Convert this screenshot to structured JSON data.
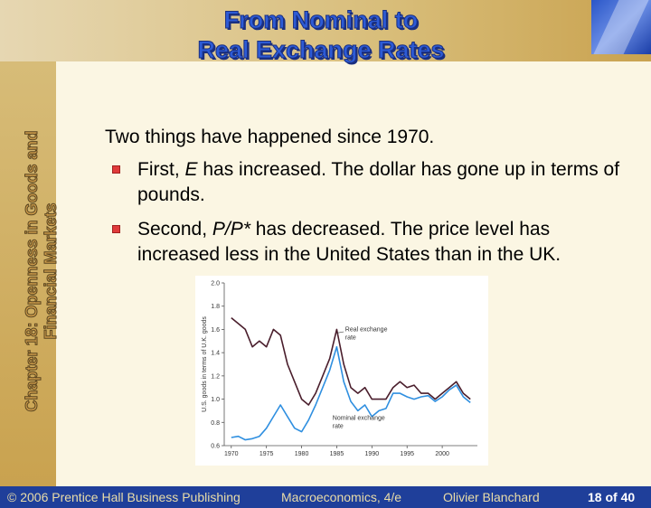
{
  "slide": {
    "title_line1": "From Nominal to",
    "title_line2": "Real Exchange Rates",
    "side_title_line1": "Chapter 18: Openness in Goods and",
    "side_title_line2": "Financial Markets",
    "lead": "Two things have happened since 1970.",
    "bullets": [
      {
        "pre": "First, ",
        "em": "E",
        "post": " has increased. The dollar has gone up in terms of pounds."
      },
      {
        "pre": "Second, ",
        "em": "P/P*",
        "post": " has decreased. The price level has increased less in the United States than in the UK."
      }
    ]
  },
  "footer": {
    "copyright": "© 2006 Prentice Hall Business Publishing",
    "book": "Macroeconomics, 4/e",
    "author": "Olivier Blanchard",
    "page": "18 of 40"
  },
  "colors": {
    "accent_blue": "#1f3f9a",
    "real_line": "#4a1e2c",
    "nominal_line": "#2f8fe0",
    "bullet_red": "#e03a3a"
  },
  "chart_data": {
    "type": "line",
    "title": "",
    "xlabel": "",
    "ylabel": "U.S. goods in terms of U.K. goods",
    "xlim": [
      1969,
      2005
    ],
    "ylim": [
      0.6,
      2.0
    ],
    "x_ticks": [
      1970,
      1975,
      1980,
      1985,
      1990,
      1995,
      2000
    ],
    "y_ticks": [
      "0.6",
      "0.8",
      "1.0",
      "1.2",
      "1.4",
      "1.6",
      "1.8",
      "2.0"
    ],
    "grid": false,
    "series": [
      {
        "name": "Real exchange rate",
        "label_line1": "Real exchange",
        "label_line2": "rate",
        "x": [
          1970,
          1971,
          1972,
          1973,
          1974,
          1975,
          1976,
          1977,
          1978,
          1979,
          1980,
          1981,
          1982,
          1983,
          1984,
          1985,
          1986,
          1987,
          1988,
          1989,
          1990,
          1991,
          1992,
          1993,
          1994,
          1995,
          1996,
          1997,
          1998,
          1999,
          2000,
          2001,
          2002,
          2003,
          2004
        ],
        "values": [
          1.7,
          1.65,
          1.6,
          1.45,
          1.5,
          1.45,
          1.6,
          1.55,
          1.3,
          1.15,
          1.0,
          0.95,
          1.05,
          1.2,
          1.35,
          1.6,
          1.3,
          1.1,
          1.05,
          1.1,
          1.0,
          1.0,
          1.0,
          1.1,
          1.15,
          1.1,
          1.12,
          1.05,
          1.05,
          1.0,
          1.05,
          1.1,
          1.15,
          1.05,
          1.0
        ]
      },
      {
        "name": "Nominal exchange rate",
        "label_line1": "Nominal exchange",
        "label_line2": "rate",
        "x": [
          1970,
          1971,
          1972,
          1973,
          1974,
          1975,
          1976,
          1977,
          1978,
          1979,
          1980,
          1981,
          1982,
          1983,
          1984,
          1985,
          1986,
          1987,
          1988,
          1989,
          1990,
          1991,
          1992,
          1993,
          1994,
          1995,
          1996,
          1997,
          1998,
          1999,
          2000,
          2001,
          2002,
          2003,
          2004
        ],
        "values": [
          0.67,
          0.68,
          0.65,
          0.66,
          0.68,
          0.75,
          0.85,
          0.95,
          0.85,
          0.75,
          0.72,
          0.82,
          0.95,
          1.1,
          1.25,
          1.45,
          1.15,
          0.98,
          0.9,
          0.95,
          0.85,
          0.9,
          0.92,
          1.05,
          1.05,
          1.02,
          1.0,
          1.02,
          1.03,
          0.98,
          1.02,
          1.08,
          1.12,
          1.02,
          0.97
        ]
      }
    ]
  }
}
